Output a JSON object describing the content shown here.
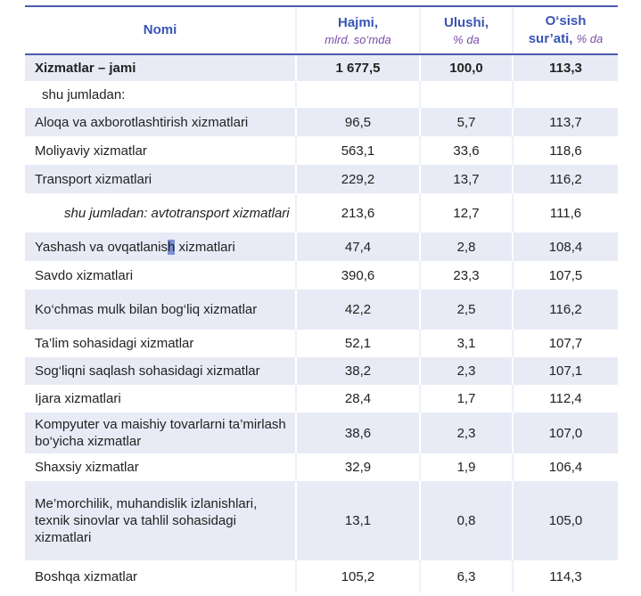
{
  "header": {
    "col1": "Nomi",
    "col2_title": "Hajmi,",
    "col2_sub": "mlrd. so‘mda",
    "col3_title": "Ulushi,",
    "col3_sub": "% da",
    "col4_title_a": "O‘sish",
    "col4_title_b": "sur’ati,",
    "col4_sub": "% da"
  },
  "total": {
    "name": "Xizmatlar – jami",
    "hajm": "1 677,5",
    "ulush": "100,0",
    "osish": "113,3"
  },
  "sub_heading": "shu jumladan:",
  "rows": [
    {
      "name": "Aloqa va axborotlashtirish xizmatlari",
      "hajm": "96,5",
      "ulush": "5,7",
      "osish": "113,7"
    },
    {
      "name": "Moliyaviy xizmatlar",
      "hajm": "563,1",
      "ulush": "33,6",
      "osish": "118,6"
    },
    {
      "name": "Transport xizmatlari",
      "hajm": "229,2",
      "ulush": "13,7",
      "osish": "116,2"
    },
    {
      "name": "shu jumladan: avtotransport xizmatlari",
      "hajm": "213,6",
      "ulush": "12,7",
      "osish": "111,6"
    },
    {
      "name_a": "Yashash va ovqatlanis",
      "name_h": "h",
      "name_b": " xizmatlari",
      "hajm": "47,4",
      "ulush": "2,8",
      "osish": "108,4"
    },
    {
      "name": "Savdo xizmatlari",
      "hajm": "390,6",
      "ulush": "23,3",
      "osish": "107,5"
    },
    {
      "name": "Ko‘chmas mulk bilan bog‘liq xizmatlar",
      "hajm": "42,2",
      "ulush": "2,5",
      "osish": "116,2"
    },
    {
      "name": "Ta’lim sohasidagi xizmatlar",
      "hajm": "52,1",
      "ulush": "3,1",
      "osish": "107,7"
    },
    {
      "name": "Sog‘liqni saqlash sohasidagi xizmatlar",
      "hajm": "38,2",
      "ulush": "2,3",
      "osish": "107,1"
    },
    {
      "name": "Ijara xizmatlari",
      "hajm": "28,4",
      "ulush": "1,7",
      "osish": "112,4"
    },
    {
      "name": "Kompyuter va maishiy tovarlarni ta’mirlash bo‘yicha xizmatlar",
      "hajm": "38,6",
      "ulush": "2,3",
      "osish": "107,0"
    },
    {
      "name": "Shaxsiy xizmatlar",
      "hajm": "32,9",
      "ulush": "1,9",
      "osish": "106,4"
    },
    {
      "name": "Me’morchilik, muhandislik izlanishlari, texnik  sinovlar va tahlil sohasidagi xizmatlari",
      "hajm": "13,1",
      "ulush": "0,8",
      "osish": "105,0"
    },
    {
      "name": "Boshqa xizmatlar",
      "hajm": "105,2",
      "ulush": "6,3",
      "osish": "114,3"
    }
  ]
}
